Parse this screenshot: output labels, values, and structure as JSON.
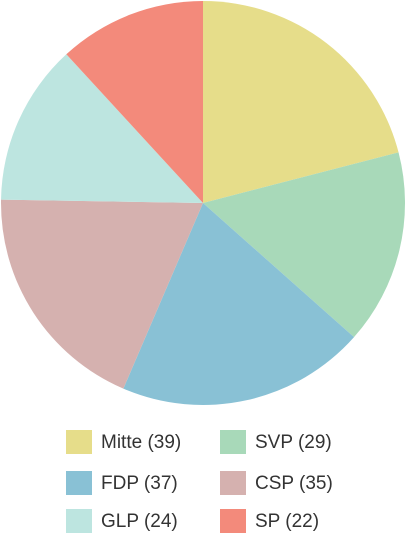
{
  "chart_data": {
    "type": "pie",
    "categories": [
      "Mitte (39)",
      "SVP (29)",
      "FDP (37)",
      "CSP (35)",
      "GLP (24)",
      "SP (22)"
    ],
    "values": [
      39,
      29,
      37,
      35,
      24,
      22
    ],
    "colors": [
      "#e6dd8a",
      "#a8d9b9",
      "#89c1d5",
      "#d5b1af",
      "#bde5e0",
      "#f38a7b"
    ],
    "legend": "bottom"
  }
}
